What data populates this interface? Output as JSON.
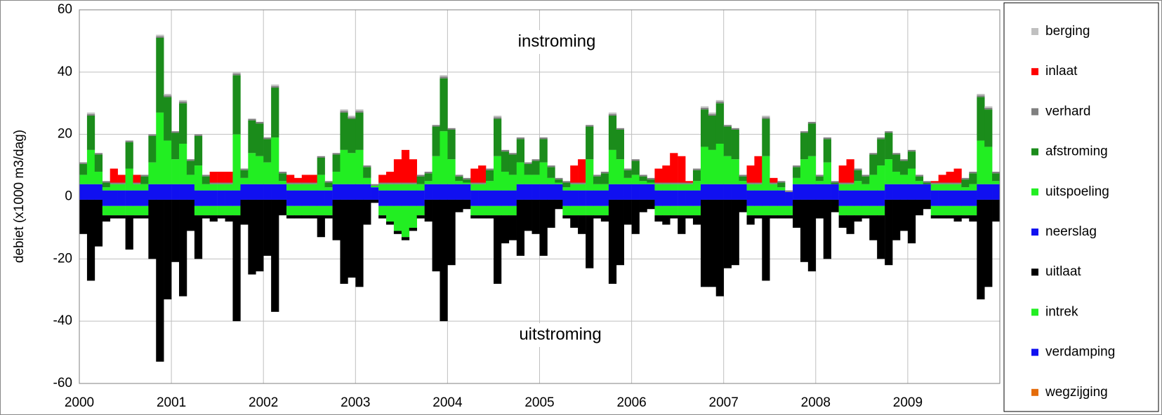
{
  "chart_data": {
    "type": "stacked-bar",
    "y_label": "debiet (x1000 m3/dag)",
    "annotations": [
      "instroming",
      "uitstroming"
    ],
    "xlim": [
      2000,
      2010
    ],
    "xticks": [
      2000,
      2001,
      2002,
      2003,
      2004,
      2005,
      2006,
      2007,
      2008,
      2009
    ],
    "ylim": [
      -60,
      60
    ],
    "yticks": [
      -60,
      -40,
      -20,
      0,
      20,
      40,
      60
    ],
    "grid": true,
    "legend": "right",
    "x": [
      2000.042,
      2000.125,
      2000.208,
      2000.292,
      2000.375,
      2000.458,
      2000.542,
      2000.625,
      2000.708,
      2000.792,
      2000.875,
      2000.958,
      2001.042,
      2001.125,
      2001.208,
      2001.292,
      2001.375,
      2001.458,
      2001.542,
      2001.625,
      2001.708,
      2001.792,
      2001.875,
      2001.958,
      2002.042,
      2002.125,
      2002.208,
      2002.292,
      2002.375,
      2002.458,
      2002.542,
      2002.625,
      2002.708,
      2002.792,
      2002.875,
      2002.958,
      2003.042,
      2003.125,
      2003.208,
      2003.292,
      2003.375,
      2003.458,
      2003.542,
      2003.625,
      2003.708,
      2003.792,
      2003.875,
      2003.958,
      2004.042,
      2004.125,
      2004.208,
      2004.292,
      2004.375,
      2004.458,
      2004.542,
      2004.625,
      2004.708,
      2004.792,
      2004.875,
      2004.958,
      2005.042,
      2005.125,
      2005.208,
      2005.292,
      2005.375,
      2005.458,
      2005.542,
      2005.625,
      2005.708,
      2005.792,
      2005.875,
      2005.958,
      2006.042,
      2006.125,
      2006.208,
      2006.292,
      2006.375,
      2006.458,
      2006.542,
      2006.625,
      2006.708,
      2006.792,
      2006.875,
      2006.958,
      2007.042,
      2007.125,
      2007.208,
      2007.292,
      2007.375,
      2007.458,
      2007.542,
      2007.625,
      2007.708,
      2007.792,
      2007.875,
      2007.958,
      2008.042,
      2008.125,
      2008.208,
      2008.292,
      2008.375,
      2008.458,
      2008.542,
      2008.625,
      2008.708,
      2008.792,
      2008.875,
      2008.958,
      2009.042,
      2009.125,
      2009.208,
      2009.292,
      2009.375,
      2009.458,
      2009.542,
      2009.625,
      2009.708,
      2009.792,
      2009.875,
      2009.958
    ],
    "series": [
      {
        "name": "berging",
        "color": "#c0c0c0",
        "values": [
          0,
          0.5,
          0,
          0,
          0,
          0,
          0,
          0,
          0,
          0,
          0.5,
          0.5,
          0,
          0.5,
          0,
          0,
          0,
          0,
          0,
          0,
          0.5,
          0,
          0,
          0,
          0,
          0.5,
          0,
          0,
          0,
          0,
          0,
          0,
          0,
          0,
          0.5,
          0.5,
          0.5,
          0,
          0,
          0,
          0,
          0,
          0,
          0,
          0,
          0,
          0,
          0.5,
          0,
          0,
          0,
          0,
          0,
          0,
          0.5,
          0,
          0,
          0,
          0,
          0,
          0,
          0,
          0,
          0,
          0,
          0,
          0,
          0,
          0,
          0.5,
          0,
          0,
          0,
          0,
          0,
          0,
          0,
          0,
          0,
          0,
          0,
          0.5,
          0.5,
          0.5,
          0,
          0,
          0,
          0,
          0,
          0.5,
          0,
          0,
          0,
          0,
          0,
          0,
          0,
          0,
          0,
          0,
          0,
          0,
          0,
          0,
          0,
          0,
          0,
          0,
          0,
          0,
          0,
          0,
          0,
          0,
          0,
          0,
          0,
          0.5,
          0.5,
          0
        ]
      },
      {
        "name": "inlaat",
        "color": "#ff0000",
        "values": [
          0,
          0,
          0,
          0,
          4.5,
          2.5,
          0,
          2.5,
          0,
          0,
          0,
          0,
          0,
          0,
          0,
          0,
          0,
          3.5,
          3.5,
          3.5,
          0,
          0,
          0,
          0,
          0,
          0,
          0,
          2.5,
          1.5,
          2.5,
          2.5,
          0,
          0,
          0,
          0,
          0,
          0,
          0,
          0,
          2.5,
          3.5,
          7.5,
          10.5,
          7.5,
          0,
          0,
          0,
          0,
          0,
          0,
          0,
          4.5,
          5.5,
          0,
          0,
          0,
          0,
          0,
          0,
          0,
          0,
          0,
          0,
          0,
          5.5,
          7.5,
          0,
          0,
          0,
          0,
          0,
          0,
          0,
          0,
          0,
          4.5,
          5.5,
          9.5,
          8.5,
          0.5,
          0,
          0,
          0,
          0,
          0,
          0,
          0,
          5.5,
          8.5,
          0,
          1.5,
          0,
          0,
          0,
          0,
          0,
          0,
          0,
          0,
          5.5,
          7.5,
          0,
          0,
          0,
          0,
          0,
          0,
          0,
          0,
          0,
          0,
          0.5,
          2.5,
          3.5,
          4.5,
          0,
          0,
          0,
          0,
          0
        ]
      },
      {
        "name": "verhard",
        "color": "#808080",
        "values": [
          0.5,
          0.5,
          0.5,
          0.5,
          0.5,
          0.5,
          0.5,
          0.5,
          0.5,
          0.5,
          0.5,
          0.5,
          0.5,
          0.5,
          0.5,
          0.5,
          0.5,
          0.5,
          0.5,
          0.5,
          0.5,
          0.5,
          0.5,
          0.5,
          0.5,
          0.5,
          0.5,
          0.5,
          0.5,
          0.5,
          0.5,
          0.5,
          0.5,
          0.5,
          0.5,
          0.5,
          0.5,
          0.5,
          0.5,
          0.5,
          0.5,
          0.5,
          0.5,
          0.5,
          0.5,
          0.5,
          0.5,
          0.5,
          0.5,
          0.5,
          0.5,
          0.5,
          0.5,
          0.5,
          0.5,
          0.5,
          0.5,
          0.5,
          0.5,
          0.5,
          0.5,
          0.5,
          0.5,
          0.5,
          0.5,
          0.5,
          0.5,
          0.5,
          0.5,
          0.5,
          0.5,
          0.5,
          0.5,
          0.5,
          0.5,
          0.5,
          0.5,
          0.5,
          0.5,
          0.5,
          0.5,
          0.5,
          0.5,
          0.5,
          0.5,
          0.5,
          0.5,
          0.5,
          0.5,
          0.5,
          0.5,
          0.5,
          0.5,
          0.5,
          0.5,
          0.5,
          0.5,
          0.5,
          0.5,
          0.5,
          0.5,
          0.5,
          0.5,
          0.5,
          0.5,
          0.5,
          0.5,
          0.5,
          0.5,
          0.5,
          0.5,
          0.5,
          0.5,
          0.5,
          0.5,
          0.5,
          0.5,
          0.5,
          0.5,
          0.5
        ]
      },
      {
        "name": "afstroming",
        "color": "#1b8c1b",
        "values": [
          3.5,
          11,
          5.5,
          1.5,
          0,
          0,
          8.5,
          0,
          2.5,
          8.5,
          24,
          14,
          8.5,
          13,
          4.5,
          9.5,
          2.5,
          0,
          0,
          0,
          19,
          2.5,
          10.5,
          10.5,
          7.5,
          16,
          2.5,
          0,
          0,
          0,
          0,
          5.5,
          1.5,
          5.5,
          12,
          11,
          12,
          3.5,
          0,
          0,
          0,
          0,
          0,
          0,
          2.5,
          2.5,
          9.5,
          17,
          9.5,
          1.5,
          1,
          0,
          0,
          3.5,
          12,
          6.5,
          6.5,
          7.5,
          3.5,
          4.5,
          7.5,
          3.5,
          1,
          1.5,
          0,
          0,
          10.5,
          2.5,
          3.5,
          11,
          9.5,
          2.5,
          4.5,
          1.5,
          1,
          0,
          0,
          0,
          0,
          0,
          3.5,
          12,
          11,
          13,
          9.5,
          9.5,
          1.5,
          0,
          0,
          12,
          0,
          1.5,
          0,
          3.5,
          8.5,
          10.5,
          1.5,
          7.5,
          0.5,
          0,
          0,
          3.5,
          2.5,
          6.5,
          8.5,
          8.5,
          5.5,
          4.5,
          5.5,
          1.5,
          0.5,
          0,
          0,
          0,
          0,
          2.5,
          3.5,
          14,
          12,
          2.5
        ]
      },
      {
        "name": "uitspoeling",
        "color": "#22ee22",
        "values": [
          3,
          11,
          4,
          1,
          2,
          2,
          7,
          2,
          2,
          7,
          23,
          14,
          8,
          13,
          3,
          8,
          2,
          2,
          2,
          2,
          18,
          2,
          10,
          9,
          7,
          15,
          1,
          2,
          2,
          2,
          2,
          5,
          1,
          4,
          11,
          10,
          11,
          2,
          0.5,
          2,
          2,
          2,
          2,
          2,
          2,
          1,
          9,
          17,
          8,
          1,
          0.5,
          2,
          2,
          3,
          11,
          6,
          5,
          7,
          3,
          3,
          7,
          2,
          0.5,
          1,
          2,
          2,
          10,
          2,
          2,
          11,
          8,
          2,
          3,
          1,
          0.5,
          2,
          2,
          2,
          2,
          2,
          3,
          12,
          11,
          13,
          9,
          8,
          1,
          2,
          2,
          11,
          2,
          1,
          0,
          2,
          8,
          9,
          1,
          7,
          0,
          2,
          2,
          3,
          2,
          5,
          8,
          8,
          4,
          3,
          5,
          1,
          0,
          2,
          2,
          2,
          2,
          1,
          2,
          14,
          12,
          1
        ]
      },
      {
        "name": "neerslag",
        "color": "#1010f0",
        "values": [
          4,
          4,
          4,
          2,
          2,
          2,
          2,
          2,
          2,
          4,
          4,
          4,
          4,
          4,
          4,
          2,
          2,
          2,
          2,
          2,
          2,
          4,
          4,
          4,
          4,
          4,
          4,
          2,
          2,
          2,
          2,
          2,
          2,
          4,
          4,
          4,
          4,
          4,
          3,
          2,
          2,
          2,
          2,
          2,
          2,
          4,
          4,
          4,
          4,
          4,
          4,
          2,
          2,
          2,
          2,
          2,
          2,
          4,
          4,
          4,
          4,
          4,
          4,
          2,
          2,
          2,
          2,
          2,
          2,
          4,
          4,
          4,
          4,
          4,
          4,
          2,
          2,
          2,
          2,
          2,
          2,
          4,
          4,
          4,
          4,
          4,
          4,
          2,
          2,
          2,
          2,
          2,
          1.5,
          4,
          4,
          4,
          4,
          4,
          4,
          2,
          2,
          2,
          2,
          2,
          2,
          4,
          4,
          4,
          4,
          4,
          4,
          2,
          2,
          2,
          2,
          2,
          2,
          4,
          4,
          4
        ]
      },
      {
        "name": "uitlaat",
        "color": "#000000",
        "values": [
          -11,
          -26,
          -15,
          -2,
          -1,
          -1,
          -11,
          -1,
          -1,
          -19,
          -52,
          -32,
          -20,
          -31,
          -10,
          -14,
          -1,
          -2,
          -1,
          -2,
          -34,
          -8,
          -24,
          -23,
          -18,
          -36,
          -5,
          -1,
          -1,
          -1,
          -1,
          -7,
          -1,
          -13,
          -27,
          -25,
          -28,
          -8,
          -1,
          -1,
          -1,
          -1,
          -1,
          -1,
          -1,
          -7,
          -23,
          -39,
          -21,
          -4,
          -3,
          -1,
          -1,
          -1,
          -22,
          -9,
          -8,
          -18,
          -10,
          -11,
          -18,
          -9,
          -3,
          -1,
          -4,
          -6,
          -17,
          -1,
          -2,
          -27,
          -21,
          -8,
          -11,
          -4,
          -3,
          -2,
          -3,
          -1,
          -6,
          -1,
          -3,
          -28,
          -28,
          -31,
          -22,
          -21,
          -4,
          -3,
          -1,
          -21,
          -1,
          -1,
          -1,
          -9,
          -20,
          -23,
          -6,
          -19,
          -4,
          -4,
          -6,
          -2,
          -1,
          -8,
          -14,
          -21,
          -13,
          -10,
          -14,
          -5,
          -3,
          -1,
          -1,
          -1,
          -2,
          -1,
          -2,
          -32,
          -28,
          -7
        ]
      },
      {
        "name": "intrek",
        "color": "#22ee22",
        "values": [
          0,
          0,
          0,
          -3,
          -3,
          -3,
          -3,
          -3,
          -3,
          0,
          0,
          0,
          0,
          0,
          0,
          -3,
          -3,
          -3,
          -3,
          -3,
          -3,
          0,
          0,
          0,
          0,
          0,
          0,
          -3,
          -3,
          -3,
          -3,
          -3,
          -3,
          0,
          0,
          0,
          0,
          0,
          0,
          -3,
          -5,
          -8,
          -10,
          -7,
          -3,
          0,
          0,
          0,
          0,
          0,
          0,
          -3,
          -3,
          -3,
          -3,
          -3,
          -3,
          0,
          0,
          0,
          0,
          0,
          0,
          -3,
          -3,
          -3,
          -3,
          -3,
          -3,
          0,
          0,
          0,
          0,
          0,
          0,
          -3,
          -3,
          -3,
          -3,
          -3,
          -3,
          0,
          0,
          0,
          0,
          0,
          0,
          -3,
          -3,
          -3,
          -3,
          -3,
          -3,
          0,
          0,
          0,
          0,
          0,
          0,
          -3,
          -3,
          -3,
          -3,
          -3,
          -3,
          0,
          0,
          0,
          0,
          0,
          0,
          -3,
          -3,
          -3,
          -3,
          -3,
          -3,
          0,
          0,
          0
        ]
      },
      {
        "name": "verdamping",
        "color": "#1010f0",
        "values": [
          -1,
          -1,
          -1,
          -3,
          -3,
          -3,
          -3,
          -3,
          -3,
          -1,
          -1,
          -1,
          -1,
          -1,
          -1,
          -3,
          -3,
          -3,
          -3,
          -3,
          -3,
          -1,
          -1,
          -1,
          -1,
          -1,
          -1,
          -3,
          -3,
          -3,
          -3,
          -3,
          -3,
          -1,
          -1,
          -1,
          -1,
          -1,
          -1,
          -3,
          -3,
          -3,
          -3,
          -3,
          -3,
          -1,
          -1,
          -1,
          -1,
          -1,
          -1,
          -3,
          -3,
          -3,
          -3,
          -3,
          -3,
          -1,
          -1,
          -1,
          -1,
          -1,
          -1,
          -3,
          -3,
          -3,
          -3,
          -3,
          -3,
          -1,
          -1,
          -1,
          -1,
          -1,
          -1,
          -3,
          -3,
          -3,
          -3,
          -3,
          -3,
          -1,
          -1,
          -1,
          -1,
          -1,
          -1,
          -3,
          -3,
          -3,
          -3,
          -3,
          -3,
          -1,
          -1,
          -1,
          -1,
          -1,
          -1,
          -3,
          -3,
          -3,
          -3,
          -3,
          -3,
          -1,
          -1,
          -1,
          -1,
          -1,
          -1,
          -3,
          -3,
          -3,
          -3,
          -3,
          -3,
          -1,
          -1,
          -1
        ]
      },
      {
        "name": "wegzijging",
        "color": "#e46c0a",
        "values": [
          0,
          0,
          0,
          0,
          0,
          0,
          0,
          0,
          0,
          0,
          0,
          0,
          0,
          0,
          0,
          0,
          0,
          0,
          0,
          0,
          0,
          0,
          0,
          0,
          0,
          0,
          0,
          0,
          0,
          0,
          0,
          0,
          0,
          0,
          0,
          0,
          0,
          0,
          0,
          0,
          0,
          0,
          0,
          0,
          0,
          0,
          0,
          0,
          0,
          0,
          0,
          0,
          0,
          0,
          0,
          0,
          0,
          0,
          0,
          0,
          0,
          0,
          0,
          0,
          0,
          0,
          0,
          0,
          0,
          0,
          0,
          0,
          0,
          0,
          0,
          0,
          0,
          0,
          0,
          0,
          0,
          0,
          0,
          0,
          0,
          0,
          0,
          0,
          0,
          0,
          0,
          0,
          0,
          0,
          0,
          0,
          0,
          0,
          0,
          0,
          0,
          0,
          0,
          0,
          0,
          0,
          0,
          0,
          0,
          0,
          0,
          0,
          0,
          0,
          0,
          0,
          0,
          0,
          0,
          0
        ]
      }
    ]
  }
}
